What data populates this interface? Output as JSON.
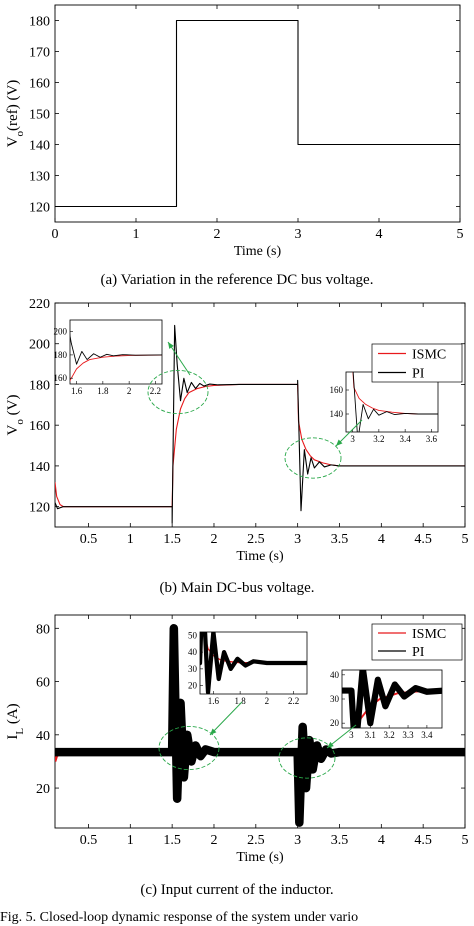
{
  "chart_data": [
    {
      "type": "line",
      "caption": "(a)  Variation in the reference DC bus voltage.",
      "xlabel": "Time (s)",
      "ylabel": "V_o(ref) (V)",
      "ylabel_main": "V",
      "ylabel_sub": "o",
      "ylabel_rest": "(ref)  (V)",
      "xlim": [
        0,
        5
      ],
      "ylim": [
        115,
        185
      ],
      "xticks": [
        0,
        1,
        2,
        3,
        4,
        5
      ],
      "yticks": [
        120,
        130,
        140,
        150,
        160,
        170,
        180
      ],
      "grid": false,
      "series": [
        {
          "color": "#000000",
          "x": [
            0,
            1.5,
            1.5,
            3,
            3,
            5
          ],
          "y": [
            120,
            120,
            180,
            180,
            140,
            140
          ]
        }
      ]
    },
    {
      "type": "line",
      "caption": "(b)  Main DC-bus voltage.",
      "xlabel": "Time (s)",
      "ylabel": "V_o (V)",
      "ylabel_main": "V",
      "ylabel_sub": "o",
      "ylabel_rest": " (V)",
      "xlim": [
        0.1,
        5
      ],
      "ylim": [
        110,
        220
      ],
      "xticks": [
        0.5,
        1,
        1.5,
        2,
        2.5,
        3,
        3.5,
        4,
        4.5,
        5
      ],
      "yticks": [
        120,
        140,
        160,
        180,
        200,
        220
      ],
      "grid": false,
      "legend": "top-right",
      "series": [
        {
          "name": "ISMC",
          "color": "#e8191c",
          "x": [
            0.1,
            0.12,
            0.16,
            0.2,
            0.3,
            1.5,
            1.51,
            1.55,
            1.6,
            1.65,
            1.7,
            1.8,
            1.9,
            2.0,
            2.3,
            3.0,
            3.01,
            3.05,
            3.1,
            3.15,
            3.2,
            3.3,
            3.4,
            3.5,
            5.0
          ],
          "y": [
            132,
            125,
            121,
            120,
            120,
            120,
            140,
            158,
            168,
            173,
            176,
            178,
            179,
            179.5,
            180,
            180,
            162,
            153,
            148,
            145,
            143,
            141.5,
            140.5,
            140,
            140
          ]
        },
        {
          "name": "PI",
          "color": "#000000",
          "x": [
            0.1,
            0.13,
            0.2,
            1.5,
            1.5,
            1.53,
            1.56,
            1.6,
            1.64,
            1.68,
            1.73,
            1.78,
            1.83,
            1.88,
            1.95,
            2.05,
            2.3,
            3.0,
            3.0,
            3.04,
            3.08,
            3.12,
            3.16,
            3.2,
            3.26,
            3.32,
            3.4,
            3.5,
            5.0
          ],
          "y": [
            122,
            119,
            120,
            120,
            112,
            209,
            190,
            172,
            183,
            176,
            181,
            178,
            180.5,
            179.2,
            180.2,
            179.8,
            180,
            180,
            182,
            118,
            148,
            136,
            144,
            139,
            142,
            139.5,
            140.5,
            140,
            140
          ]
        }
      ],
      "insets": [
        {
          "xlim": [
            1.55,
            2.25
          ],
          "ylim": [
            155,
            210
          ],
          "xticks": [
            1.6,
            1.8,
            2,
            2.2
          ],
          "yticks": [
            160,
            180,
            200
          ]
        },
        {
          "xlim": [
            2.95,
            3.65
          ],
          "ylim": [
            125,
            175
          ],
          "xticks": [
            3,
            3.2,
            3.4,
            3.6
          ],
          "yticks": [
            140,
            160
          ]
        }
      ]
    },
    {
      "type": "line",
      "caption": "(c)  Input current of the inductor.",
      "xlabel": "Time (s)",
      "ylabel": "I_L (A)",
      "ylabel_main": "I",
      "ylabel_sub": "L",
      "ylabel_rest": " (A)",
      "xlim": [
        0.1,
        5
      ],
      "ylim": [
        5,
        85
      ],
      "xticks": [
        0.5,
        1,
        1.5,
        2,
        2.5,
        3,
        3.5,
        4,
        4.5,
        5
      ],
      "yticks": [
        20,
        40,
        60,
        80
      ],
      "grid": false,
      "legend": "top-right",
      "series": [
        {
          "name": "ISMC",
          "color": "#e8191c",
          "x": [
            0.1,
            0.12,
            0.16,
            0.2,
            1.5,
            1.51,
            1.53,
            1.56,
            1.6,
            1.65,
            1.7,
            1.8,
            3.0,
            3.01,
            3.05,
            3.1,
            3.15,
            3.25,
            3.4,
            5.0
          ],
          "y": [
            30,
            32,
            33,
            33.5,
            33.5,
            75,
            52,
            42,
            38,
            35.5,
            34.5,
            33.7,
            33.5,
            15,
            22,
            27,
            30,
            32.5,
            33.4,
            33.5
          ],
          "band": 0.5
        },
        {
          "name": "PI",
          "color": "#000000",
          "x": [
            0.1,
            0.15,
            1.5,
            1.52,
            1.56,
            1.6,
            1.64,
            1.68,
            1.73,
            1.78,
            1.84,
            1.9,
            2.0,
            3.0,
            3.02,
            3.06,
            3.1,
            3.14,
            3.18,
            3.23,
            3.28,
            3.34,
            3.4,
            3.5,
            5.0
          ],
          "y": [
            33.5,
            33.5,
            33.5,
            80,
            16,
            52,
            24,
            40,
            30,
            36,
            32,
            34.5,
            33.5,
            33.5,
            7,
            43,
            20,
            38,
            27,
            36,
            31,
            34.5,
            33,
            33.5,
            33.5
          ],
          "band": 1.6
        }
      ],
      "insets": [
        {
          "xlim": [
            1.5,
            2.3
          ],
          "ylim": [
            15,
            52
          ],
          "xticks": [
            1.6,
            1.8,
            2,
            2.2
          ],
          "yticks": [
            20,
            30,
            40,
            50
          ]
        },
        {
          "xlim": [
            2.95,
            3.48
          ],
          "ylim": [
            18,
            42
          ],
          "xticks": [
            3,
            3.1,
            3.2,
            3.3,
            3.4
          ],
          "yticks": [
            20,
            30,
            40
          ]
        }
      ]
    }
  ],
  "figure_caption": "Fig. 5. Closed-loop dynamic response of the system under vario"
}
